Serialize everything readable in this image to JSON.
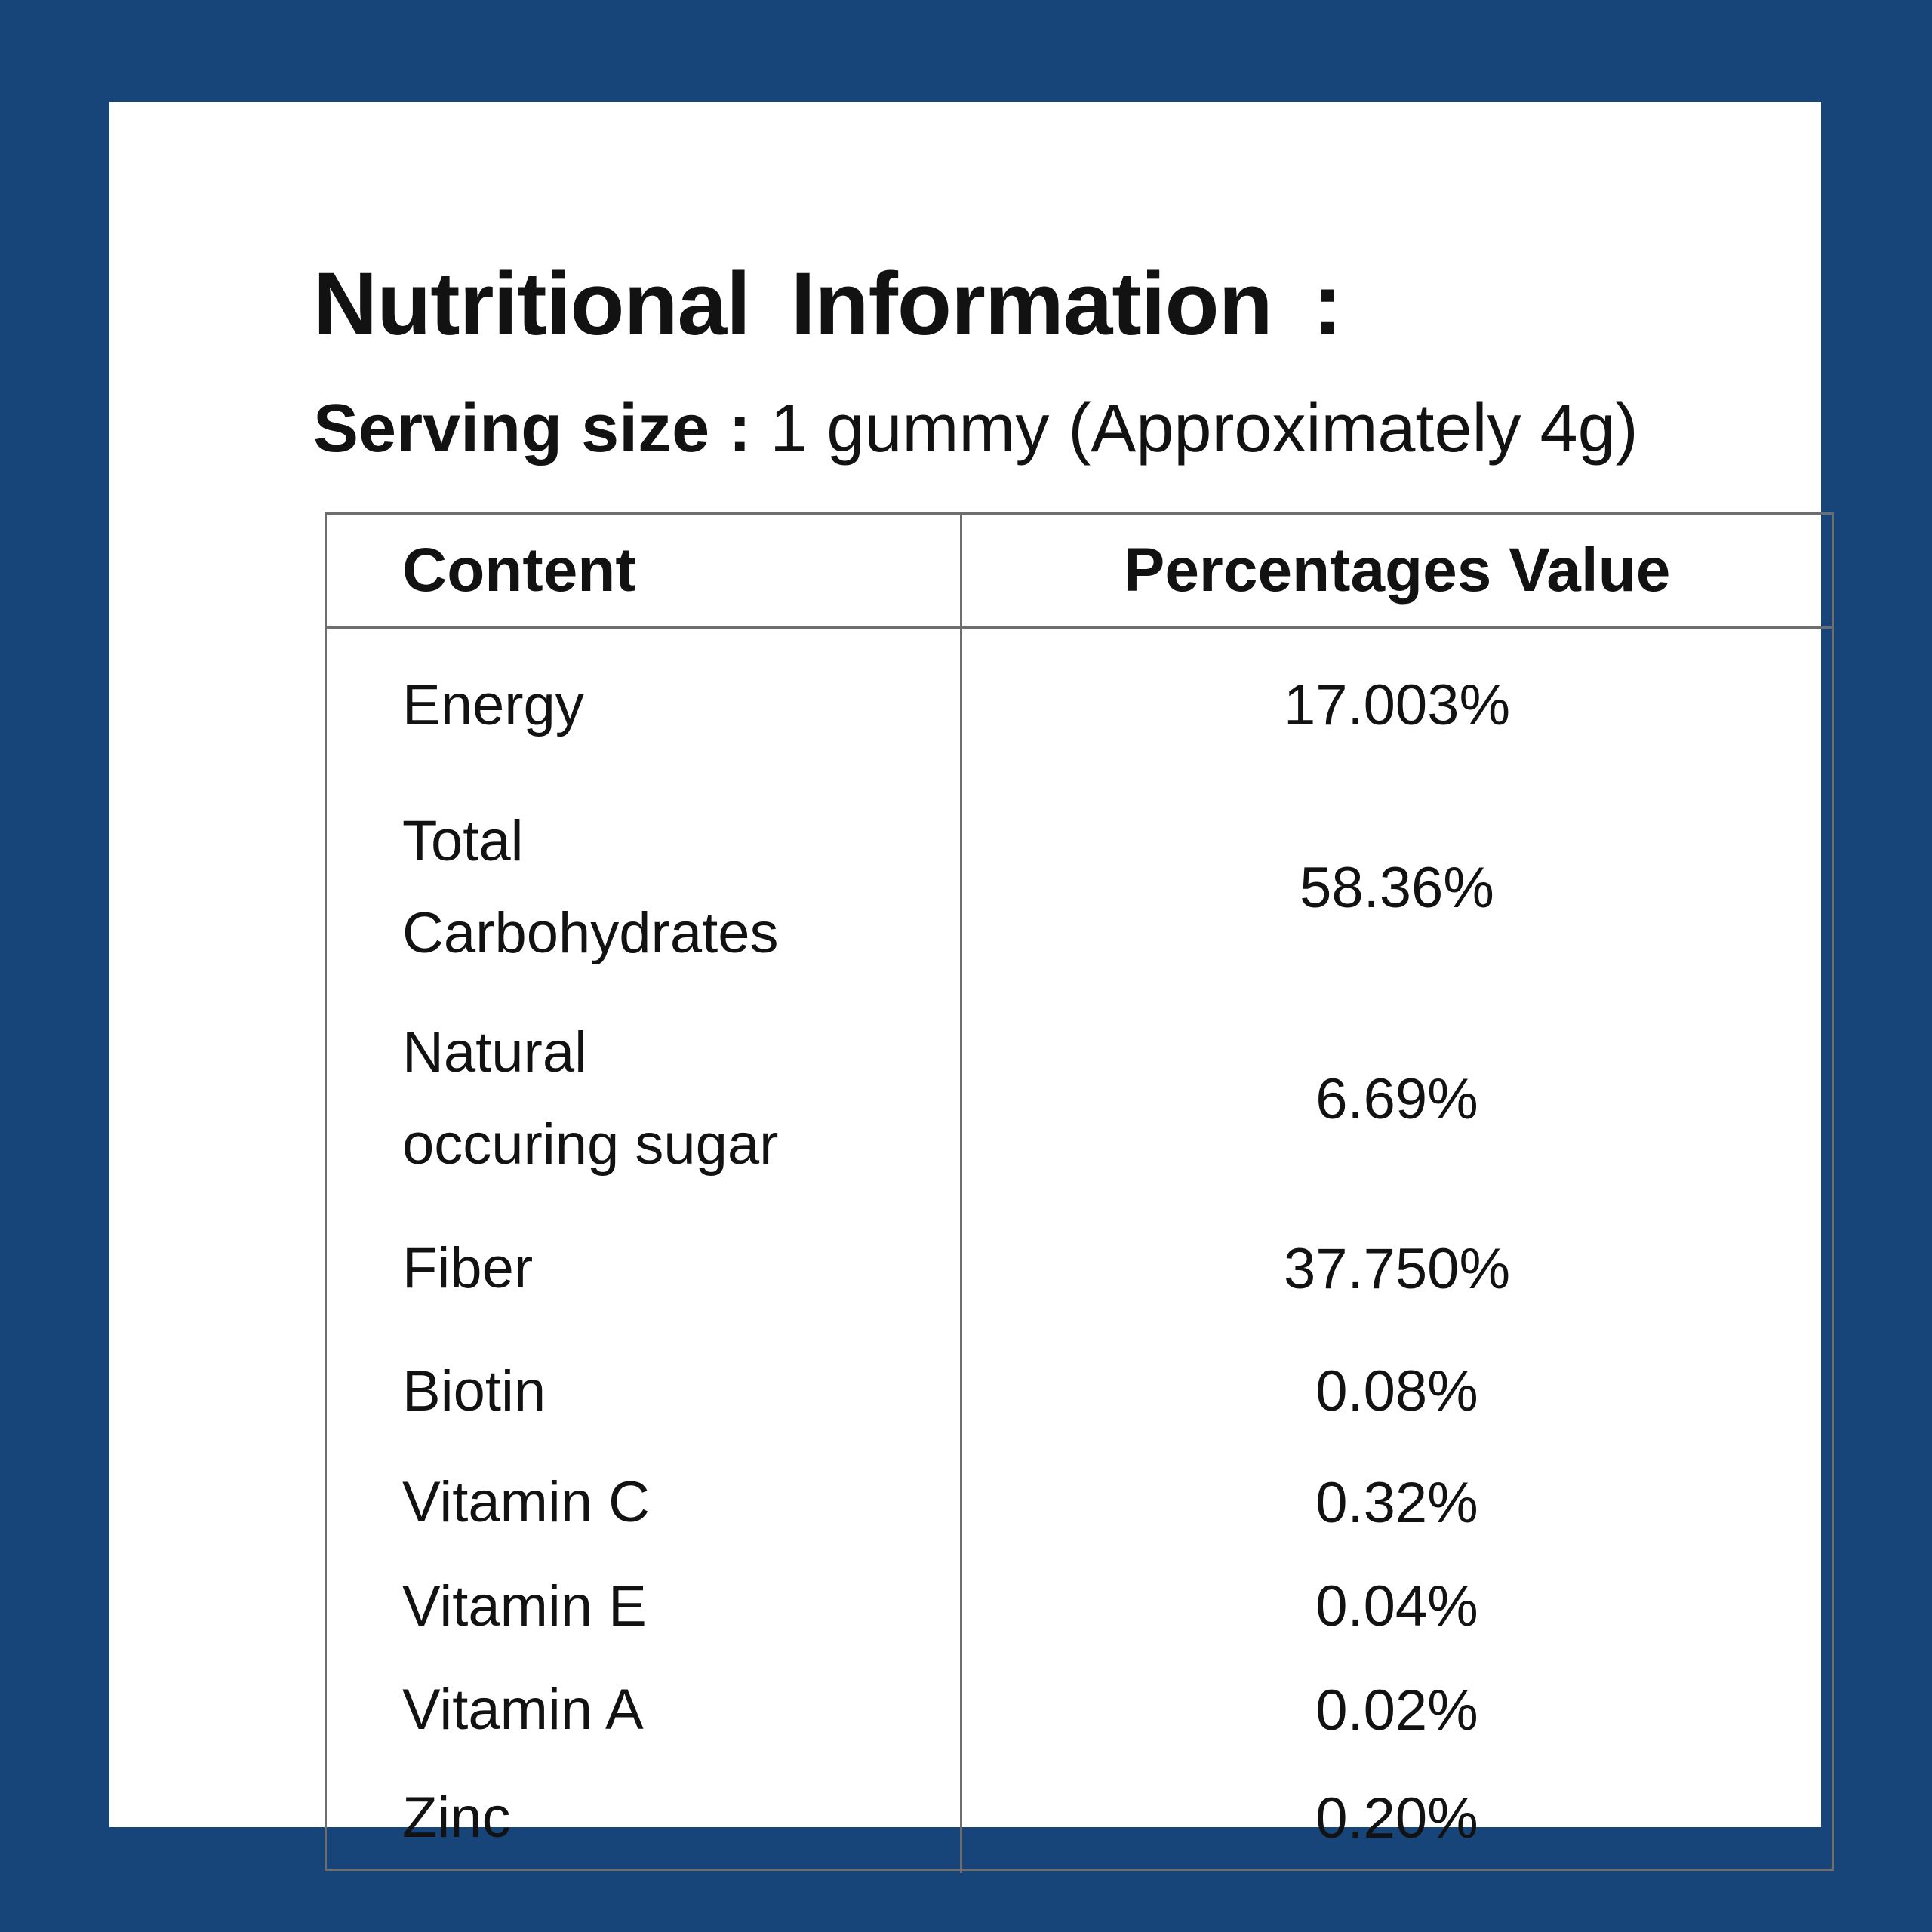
{
  "colors": {
    "background": "#17457A",
    "card": "#FFFFFF",
    "table_border": "#6E6E6E",
    "text": "#121212"
  },
  "header": {
    "title": "Nutritional Information :",
    "serving_label": "Serving size :",
    "serving_value": " 1 gummy (Approximately 4g)"
  },
  "table": {
    "headers": {
      "content": "Content",
      "value": "Percentages Value"
    },
    "rows": [
      {
        "label": "Energy",
        "value": "17.003%"
      },
      {
        "label": "Total Carbohydrates",
        "value": "58.36%"
      },
      {
        "label": "Natural occuring sugar",
        "value": "6.69%"
      },
      {
        "label": "Fiber",
        "value": "37.750%"
      },
      {
        "label": "Biotin",
        "value": "0.08%"
      },
      {
        "label": "Vitamin C",
        "value": "0.32%"
      },
      {
        "label": "Vitamin E",
        "value": "0.04%"
      },
      {
        "label": "Vitamin A",
        "value": "0.02%"
      },
      {
        "label": "Zinc",
        "value": "0.20%"
      }
    ]
  }
}
